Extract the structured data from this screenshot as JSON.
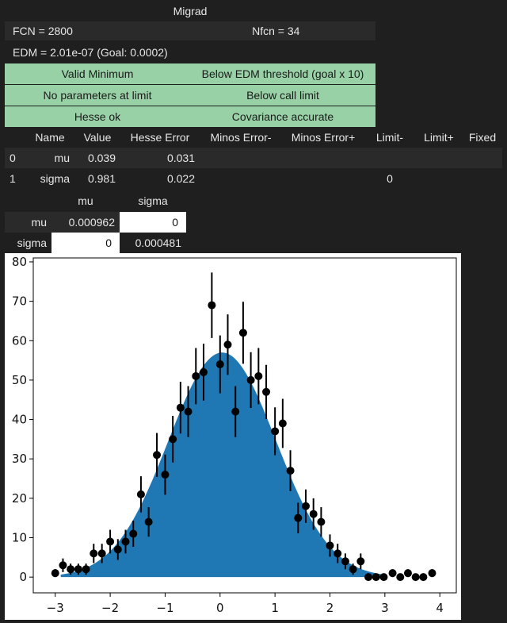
{
  "migrad": {
    "title": "Migrad",
    "fcn": "FCN = 2800",
    "nfcn": "Nfcn = 34",
    "edm": "EDM = 2.01e-07 (Goal: 0.0002)",
    "status": {
      "valid_minimum": "Valid Minimum",
      "below_edm": "Below EDM threshold (goal x 10)",
      "no_params_at_limit": "No parameters at limit",
      "below_call_limit": "Below call limit",
      "hesse_ok": "Hesse ok",
      "covariance_accurate": "Covariance accurate"
    },
    "status_color": "#99d1a7"
  },
  "params": {
    "headers": [
      "",
      "Name",
      "Value",
      "Hesse Error",
      "Minos Error-",
      "Minos Error+",
      "Limit-",
      "Limit+",
      "Fixed"
    ],
    "rows": [
      [
        "0",
        "mu",
        "0.039",
        "0.031",
        "",
        "",
        "",
        "",
        ""
      ],
      [
        "1",
        "sigma",
        "0.981",
        "0.022",
        "",
        "",
        "0",
        "",
        ""
      ]
    ]
  },
  "covariance": {
    "col_headers": [
      "mu",
      "sigma"
    ],
    "rows": [
      {
        "label": "mu",
        "values": [
          "0.000962",
          "0"
        ]
      },
      {
        "label": "sigma",
        "values": [
          "0",
          "0.000481"
        ]
      }
    ]
  },
  "chart_data": {
    "type": "scatter",
    "title": "",
    "xlabel": "",
    "ylabel": "",
    "xlim": [
      -3.4,
      4.3
    ],
    "ylim": [
      -4,
      81
    ],
    "xticks": [
      -3,
      -2,
      -1,
      0,
      1,
      2,
      3,
      4
    ],
    "xtick_labels": [
      "−3",
      "−2",
      "−1",
      "0",
      "1",
      "2",
      "3",
      "4"
    ],
    "yticks": [
      0,
      10,
      20,
      30,
      40,
      50,
      60,
      70,
      80
    ],
    "ytick_labels": [
      "0",
      "10",
      "20",
      "30",
      "40",
      "50",
      "60",
      "70",
      "80"
    ],
    "fill_color": "#1f77b4",
    "point_color": "#000000",
    "fit": {
      "mu": 0.039,
      "sigma": 0.981,
      "scale": 57.0,
      "x_min": -2.9,
      "x_max": 2.95
    },
    "series": [
      {
        "x": [
          -3.0,
          -2.86,
          -2.72,
          -2.58,
          -2.44,
          -2.3,
          -2.15,
          -2.0,
          -1.86,
          -1.72,
          -1.58,
          -1.44,
          -1.3,
          -1.15,
          -1.0,
          -0.86,
          -0.72,
          -0.58,
          -0.44,
          -0.3,
          -0.15,
          0.0,
          0.14,
          0.28,
          0.42,
          0.56,
          0.7,
          0.84,
          1.0,
          1.14,
          1.28,
          1.42,
          1.56,
          1.7,
          1.84,
          2.0,
          2.14,
          2.28,
          2.42,
          2.56,
          2.7,
          2.84,
          2.98,
          3.14,
          3.28,
          3.42,
          3.56,
          3.7,
          3.86
        ],
        "y": [
          1,
          3,
          2,
          2,
          2,
          6,
          6,
          9,
          7,
          9,
          11,
          21,
          14,
          31,
          26,
          35,
          43,
          42,
          51,
          52,
          69,
          54,
          59,
          42,
          62,
          50,
          51,
          47,
          37,
          39,
          27,
          15,
          18,
          16,
          14,
          8,
          6,
          4,
          2,
          4,
          0,
          0,
          0,
          1,
          0,
          1,
          0,
          0,
          1
        ]
      }
    ]
  }
}
